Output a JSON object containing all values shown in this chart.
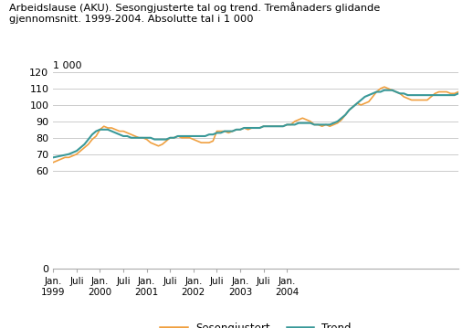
{
  "title": "Arbeidslause (AKU). Sesongjusterte tal og trend. Tremånaders glidande\ngjennomsnitt. 1999-2004. Absolutte tal i 1 000",
  "ylabel": "1 000",
  "background_color": "#ffffff",
  "grid_color": "#cccccc",
  "sesongjustert_color": "#f0a040",
  "trend_color": "#3a9999",
  "ylim_bottom": 0,
  "ylim_top": 120,
  "yticks": [
    0,
    60,
    70,
    80,
    90,
    100,
    110,
    120
  ],
  "sesongjustert": [
    65,
    66,
    67,
    68,
    68,
    69,
    70,
    72,
    74,
    76,
    79,
    81,
    85,
    87,
    86,
    86,
    85,
    84,
    84,
    83,
    82,
    81,
    80,
    80,
    79,
    77,
    76,
    75,
    76,
    78,
    80,
    80,
    81,
    80,
    80,
    80,
    79,
    78,
    77,
    77,
    77,
    78,
    84,
    84,
    84,
    83,
    84,
    85,
    85,
    86,
    85,
    86,
    86,
    86,
    87,
    87,
    87,
    87,
    87,
    87,
    88,
    88,
    90,
    91,
    92,
    91,
    90,
    88,
    88,
    87,
    88,
    87,
    88,
    89,
    91,
    94,
    97,
    99,
    101,
    100,
    101,
    102,
    105,
    108,
    110,
    111,
    110,
    109,
    108,
    107,
    105,
    104,
    103,
    103,
    103,
    103,
    103,
    105,
    107,
    108,
    108,
    108,
    107,
    107,
    108
  ],
  "trend": [
    68,
    68.5,
    69,
    69.5,
    70,
    71,
    72,
    74,
    76,
    79,
    82,
    84,
    85,
    85,
    85,
    84,
    83,
    82,
    81,
    81,
    80,
    80,
    80,
    80,
    80,
    80,
    79,
    79,
    79,
    79,
    80,
    80,
    81,
    81,
    81,
    81,
    81,
    81,
    81,
    81,
    82,
    82,
    83,
    83,
    84,
    84,
    84,
    85,
    85,
    86,
    86,
    86,
    86,
    86,
    87,
    87,
    87,
    87,
    87,
    87,
    88,
    88,
    88,
    89,
    89,
    89,
    89,
    88,
    88,
    88,
    88,
    88,
    89,
    90,
    92,
    94,
    97,
    99,
    101,
    103,
    105,
    106,
    107,
    108,
    108,
    109,
    109,
    109,
    108,
    107,
    107,
    106,
    106,
    106,
    106,
    106,
    106,
    106,
    106,
    106,
    106,
    106,
    106,
    106,
    107
  ],
  "n_points": 105,
  "xtick_positions": [
    0,
    6,
    12,
    18,
    24,
    30,
    36,
    42,
    48,
    54,
    60
  ],
  "xtick_labels": [
    "Jan.\n1999",
    "Juli",
    "Jan.\n2000",
    "Juli",
    "Jan.\n2001",
    "Juli",
    "Jan.\n2002",
    "Juli",
    "Jan.\n2003",
    "Juli",
    "Jan.\n2004"
  ],
  "legend_labels": [
    "Sesongjustert",
    "Trend"
  ]
}
